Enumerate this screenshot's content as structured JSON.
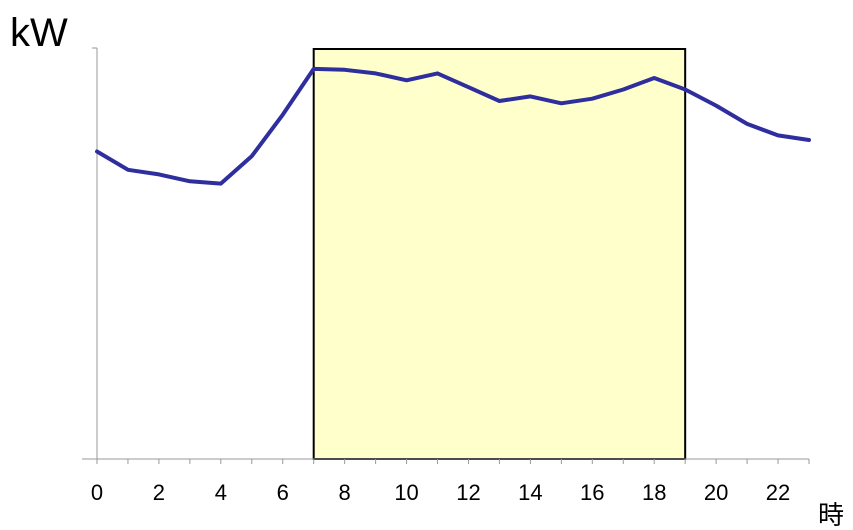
{
  "chart_data": {
    "type": "line",
    "ylabel": "kW",
    "xlabel": "時",
    "xlim": [
      0,
      23
    ],
    "x_ticks": [
      0,
      2,
      4,
      6,
      8,
      10,
      12,
      14,
      16,
      18,
      20,
      22
    ],
    "ylim": [
      0,
      100
    ],
    "grid": false,
    "legend": "none",
    "highlight_band": {
      "x_start": 7,
      "x_end": 19,
      "color": "#ffffcc"
    },
    "series": [
      {
        "color": "#2e2e9e",
        "x": [
          0,
          1,
          2,
          3,
          4,
          5,
          6,
          7,
          8,
          9,
          10,
          11,
          12,
          13,
          14,
          15,
          16,
          17,
          18,
          19,
          20,
          21,
          22,
          23
        ],
        "values": [
          67,
          63,
          62,
          60.5,
          60,
          66,
          75,
          85,
          84.8,
          84,
          82.5,
          84,
          81,
          78,
          79,
          77.5,
          78.5,
          80.5,
          83,
          80.5,
          77,
          73,
          70.5,
          69.5
        ]
      }
    ]
  }
}
